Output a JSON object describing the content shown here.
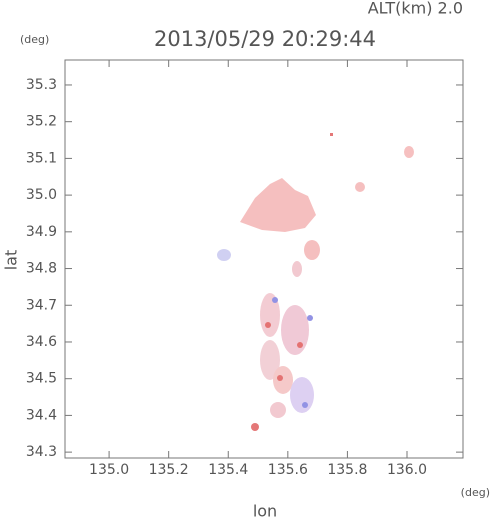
{
  "chart_data": {
    "type": "map",
    "title": "2013/05/29 20:29:44",
    "subtitle": "ALT(km) 2.0",
    "x_label": "lon",
    "y_label": "lat",
    "x_unit": "(deg)",
    "y_unit": "(deg)",
    "xlim": [
      134.852,
      136.188
    ],
    "ylim": [
      34.284,
      35.368
    ],
    "xticks": [
      {
        "value": 135.0,
        "label": "135.0"
      },
      135.2,
      135.4,
      135.6,
      135.8,
      {
        "value": 136.0,
        "label": "136.0"
      }
    ],
    "yticks": [
      34.3,
      34.4,
      34.5,
      34.6,
      34.7,
      34.8,
      34.9,
      {
        "value": 35.0,
        "label": "35.0"
      },
      35.1,
      35.2,
      35.3
    ]
  }
}
